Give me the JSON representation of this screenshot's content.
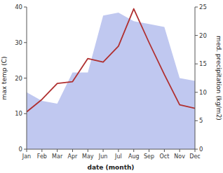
{
  "chart_data": {
    "type": "line",
    "xlabel": "date (month)",
    "ylabel": "max temp (C)",
    "y2label": "med. precipitation (kg/m2)",
    "categories": [
      "Jan",
      "Feb",
      "Mar",
      "Apr",
      "May",
      "Jun",
      "Jul",
      "Aug",
      "Sep",
      "Oct",
      "Nov",
      "Dec"
    ],
    "series": [
      {
        "type": "area",
        "axis": "y2",
        "color": "#c0c8f0",
        "values": [
          10.0,
          8.5,
          8.0,
          13.5,
          13.5,
          23.5,
          24.0,
          22.5,
          22.0,
          21.5,
          12.5,
          12.0
        ]
      },
      {
        "type": "line",
        "color": "#b03030",
        "values": [
          10.5,
          14.0,
          18.5,
          19.0,
          25.5,
          24.5,
          29.0,
          39.5,
          30.0,
          21.0,
          12.5,
          11.5
        ]
      }
    ],
    "ylim": [
      0,
      40
    ],
    "yticks": [
      0,
      10,
      20,
      30,
      40
    ],
    "y2lim": [
      0,
      25
    ],
    "y2ticks": [
      0,
      5,
      10,
      15,
      20,
      25
    ],
    "grid": false
  }
}
